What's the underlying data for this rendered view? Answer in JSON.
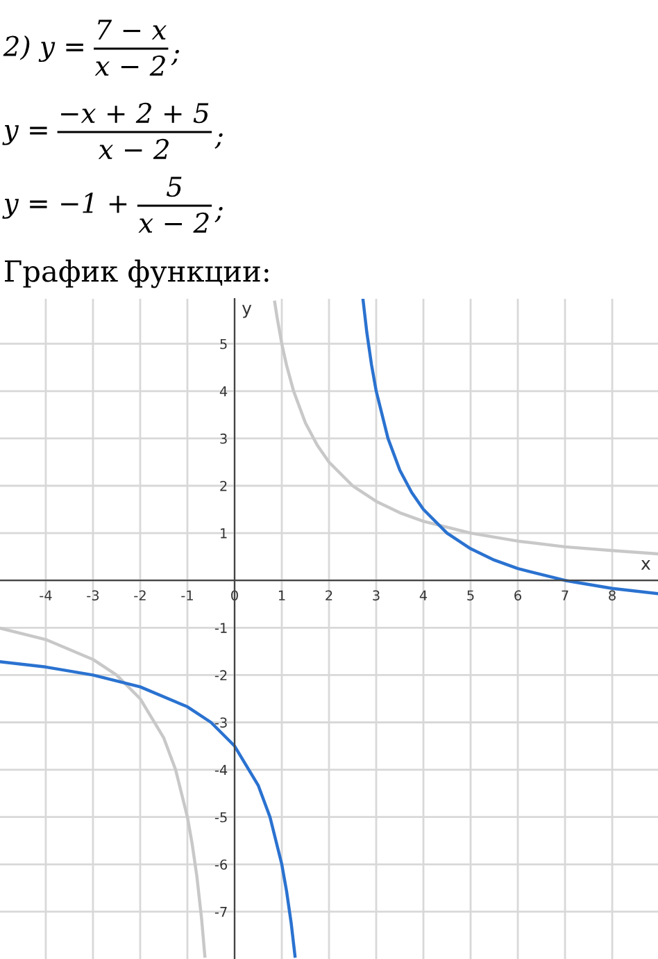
{
  "chart_data": {
    "type": "line",
    "title": "График функции:",
    "xlabel": "x",
    "ylabel": "y",
    "annotations": [
      "2) y =",
      "7 − x",
      "x − 2",
      ";",
      "y =",
      "−x + 2 + 5",
      "x − 2",
      ";",
      "y = −1 +",
      "5",
      "x − 2",
      ";"
    ],
    "xlim": [
      -4.97,
      8.97
    ],
    "ylim": [
      -8,
      5.95
    ],
    "xticks": [
      -4,
      -3,
      -2,
      -1,
      0,
      1,
      2,
      3,
      4,
      5,
      6,
      7,
      8
    ],
    "yticks": [
      -7,
      -6,
      -5,
      -4,
      -3,
      -2,
      -1,
      {
        "value": 0,
        "label": null
      },
      1,
      2,
      3,
      4,
      5
    ],
    "grid": true,
    "marker": "none",
    "line_style": "solid",
    "series": [
      {
        "color": "#c8c8c8",
        "x": [
          0.85,
          0.9,
          1,
          1.1,
          1.25,
          1.5,
          1.75,
          2,
          2.5,
          3,
          3.5,
          4,
          5,
          6,
          7,
          8,
          8.97
        ],
        "values": [
          5.88,
          5.56,
          5,
          4.55,
          4,
          3.33,
          2.86,
          2.5,
          2,
          1.67,
          1.43,
          1.25,
          1,
          0.83,
          0.71,
          0.63,
          0.56
        ]
      },
      {
        "color": "#c8c8c8",
        "x": [
          -4.97,
          -4,
          -3,
          -2.5,
          -2,
          -1.5,
          -1.25,
          -1,
          -0.9,
          -0.8,
          -0.7,
          -0.63
        ],
        "values": [
          -1.01,
          -1.25,
          -1.67,
          -2,
          -2.5,
          -3.33,
          -4,
          -5,
          -5.56,
          -6.25,
          -7.14,
          -7.94
        ]
      },
      {
        "color": "#2a72d0",
        "x": [
          2.72,
          2.8,
          2.9,
          3,
          3.25,
          3.5,
          3.75,
          4,
          4.5,
          5,
          5.5,
          6,
          7,
          8,
          8.97
        ],
        "values": [
          5.94,
          5.25,
          4.56,
          4,
          3,
          2.33,
          1.86,
          1.5,
          1,
          0.67,
          0.43,
          0.25,
          0,
          -0.17,
          -0.28
        ]
      },
      {
        "color": "#2a72d0",
        "x": [
          -4.97,
          -4,
          -3,
          -2,
          -1,
          -0.5,
          0,
          0.5,
          0.75,
          1,
          1.1,
          1.2,
          1.28
        ],
        "values": [
          -1.72,
          -1.83,
          -2,
          -2.25,
          -2.67,
          -3,
          -3.5,
          -4.33,
          -5,
          -6,
          -6.56,
          -7.25,
          -7.94
        ]
      }
    ]
  }
}
